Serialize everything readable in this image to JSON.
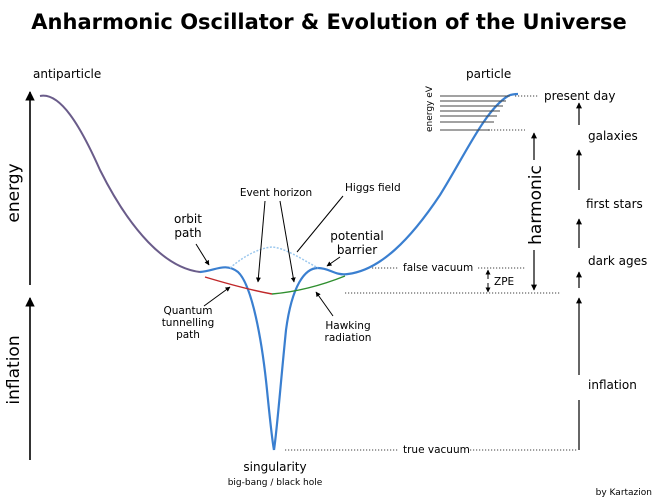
{
  "title": "Anharmonic Oscillator & Evolution of the Universe",
  "labels": {
    "antiparticle": "antiparticle",
    "particle": "particle",
    "energy": "energy",
    "inflation_left": "inflation",
    "energy_ev": "energy eV",
    "present_day": "present day",
    "galaxies": "galaxies",
    "first_stars": "first stars",
    "dark_ages": "dark ages",
    "inflation_right": "inflation",
    "harmonic": "harmonic",
    "zpe": "ZPE",
    "false_vacuum": "false vacuum",
    "true_vacuum": "true vacuum",
    "orbit_path_1": "orbit",
    "orbit_path_2": "path",
    "event_horizon": "Event horizon",
    "higgs_field": "Higgs field",
    "potential_barrier_1": "potential",
    "potential_barrier_2": "barrier",
    "quantum_1": "Quantum",
    "quantum_2": "tunnelling",
    "quantum_3": "path",
    "hawking_1": "Hawking",
    "hawking_2": "radiation",
    "singularity": "singularity",
    "bigbang": "big-bang / black hole",
    "credit": "by Kartazion"
  },
  "colors": {
    "curve": "#3a7fd0",
    "curve_top": "#555a66",
    "higgs": "#9cc8ee",
    "tunnel": "#c0282a",
    "hawking": "#2f8f2f"
  }
}
